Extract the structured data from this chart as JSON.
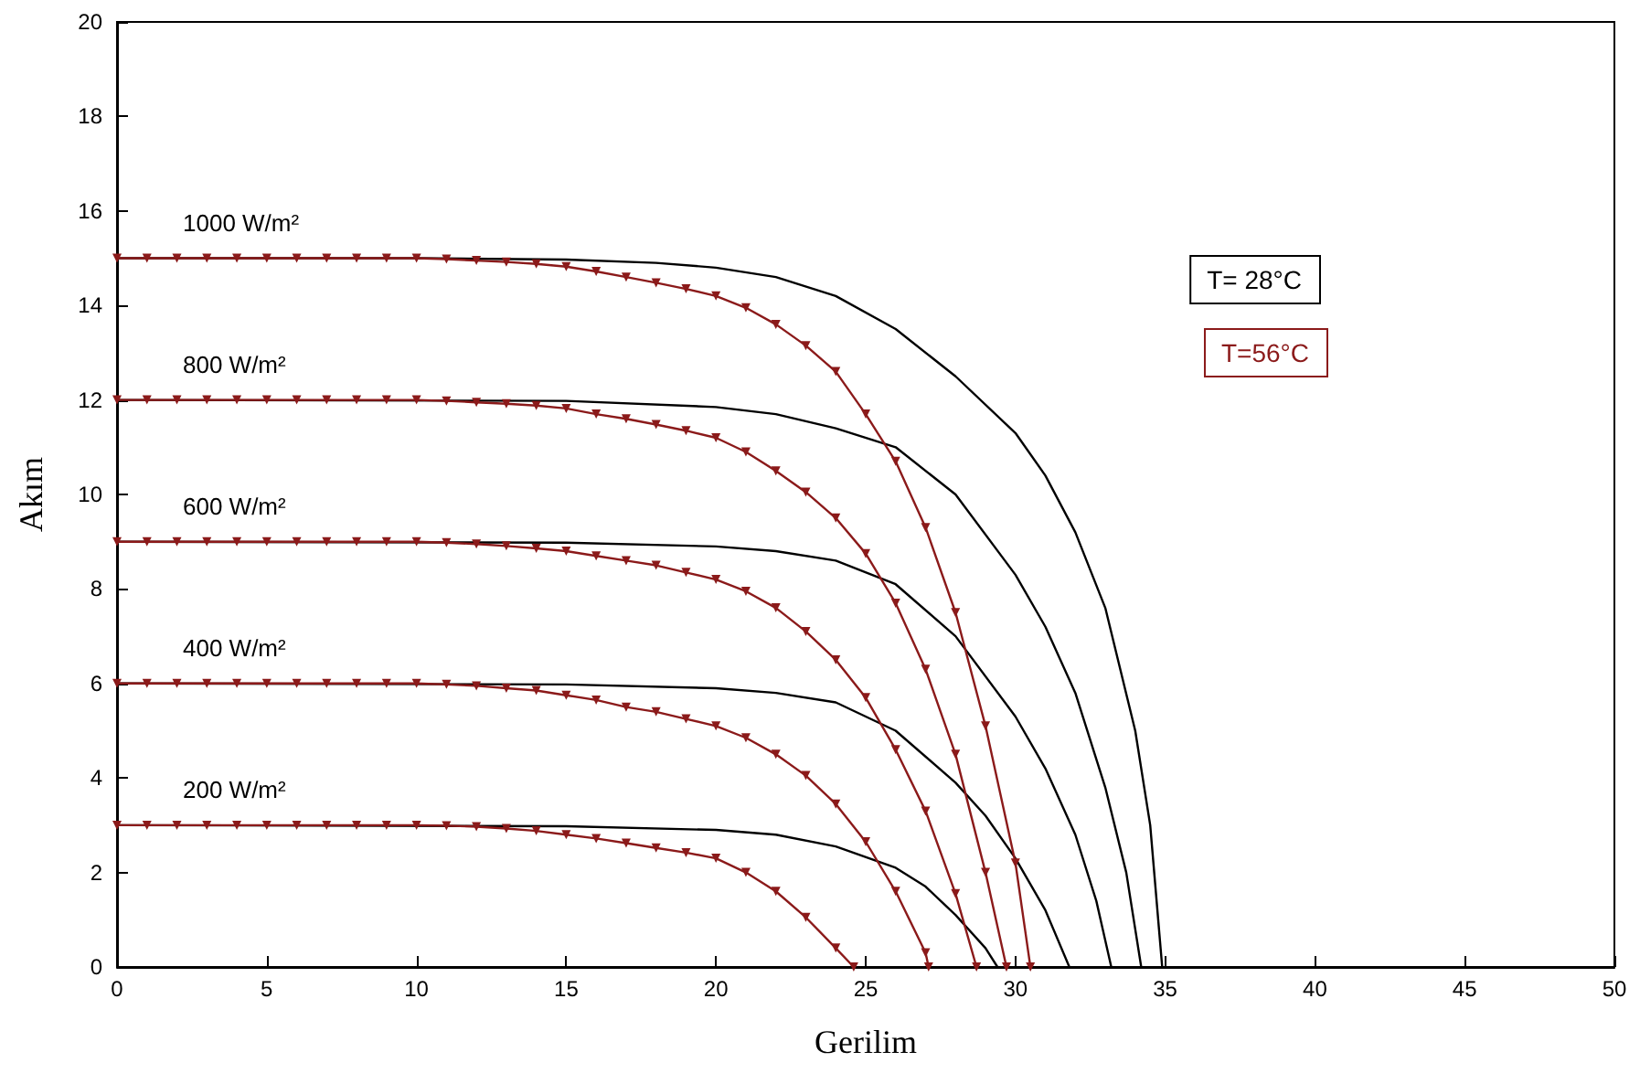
{
  "chart_data": {
    "type": "line",
    "xlabel": "Gerilim",
    "ylabel": "Akım",
    "xlim": [
      0,
      50
    ],
    "xticks": [
      0,
      5,
      10,
      15,
      20,
      25,
      30,
      35,
      40,
      45,
      50
    ],
    "ylim": [
      0,
      20
    ],
    "yticks": [
      0,
      2,
      4,
      6,
      8,
      10,
      12,
      14,
      16,
      18,
      20
    ],
    "grid": false,
    "legend": "top right",
    "line_style": "solid",
    "series": [
      {
        "name": "T= 28°C",
        "color": "#000000",
        "marker": "none",
        "x": [
          0,
          10,
          15,
          18,
          20,
          22,
          24,
          26,
          28,
          30,
          31,
          32,
          33,
          34,
          34.5,
          34.9
        ],
        "values": [
          15,
          15,
          14.97,
          14.9,
          14.8,
          14.6,
          14.2,
          13.5,
          12.5,
          11.3,
          10.4,
          9.2,
          7.6,
          5,
          3,
          0
        ]
      },
      {
        "color": "#000000",
        "marker": "none",
        "x": [
          0,
          15,
          20,
          22,
          24,
          26,
          28,
          30,
          31,
          32,
          33,
          33.7,
          34.2
        ],
        "values": [
          12,
          11.98,
          11.85,
          11.7,
          11.4,
          11,
          10,
          8.3,
          7.2,
          5.8,
          3.8,
          2,
          0
        ]
      },
      {
        "color": "#000000",
        "marker": "none",
        "x": [
          0,
          15,
          20,
          22,
          24,
          26,
          28,
          30,
          31,
          32,
          32.7,
          33.2
        ],
        "values": [
          9,
          8.98,
          8.9,
          8.8,
          8.6,
          8.1,
          7,
          5.3,
          4.2,
          2.8,
          1.4,
          0
        ]
      },
      {
        "color": "#000000",
        "marker": "none",
        "x": [
          0,
          15,
          20,
          22,
          24,
          26,
          28,
          29,
          30,
          31,
          31.8
        ],
        "values": [
          6,
          5.98,
          5.9,
          5.8,
          5.6,
          5,
          3.9,
          3.2,
          2.3,
          1.2,
          0
        ]
      },
      {
        "color": "#000000",
        "marker": "none",
        "x": [
          0,
          15,
          20,
          22,
          24,
          26,
          27,
          28,
          29,
          29.4
        ],
        "values": [
          3,
          2.98,
          2.9,
          2.8,
          2.55,
          2.1,
          1.7,
          1.1,
          0.4,
          0
        ]
      },
      {
        "name": "T=56°C",
        "color": "#8b1a1a",
        "marker": "triangle",
        "x": [
          0,
          1,
          2,
          3,
          4,
          5,
          6,
          7,
          8,
          9,
          10,
          11,
          12,
          13,
          14,
          15,
          16,
          17,
          18,
          19,
          20,
          21,
          22,
          23,
          24,
          25,
          26,
          27,
          28,
          29,
          30,
          30.5
        ],
        "values": [
          15,
          15,
          15,
          15,
          15,
          15,
          15,
          15,
          15,
          15,
          15,
          14.98,
          14.95,
          14.92,
          14.88,
          14.82,
          14.72,
          14.6,
          14.48,
          14.35,
          14.2,
          13.95,
          13.6,
          13.15,
          12.6,
          11.7,
          10.7,
          9.3,
          7.5,
          5.1,
          2.2,
          0
        ]
      },
      {
        "color": "#8b1a1a",
        "marker": "triangle",
        "x": [
          0,
          1,
          2,
          3,
          4,
          5,
          6,
          7,
          8,
          9,
          10,
          11,
          12,
          13,
          14,
          15,
          16,
          17,
          18,
          19,
          20,
          21,
          22,
          23,
          24,
          25,
          26,
          27,
          28,
          29,
          29.7
        ],
        "values": [
          12,
          12,
          12,
          12,
          12,
          12,
          12,
          12,
          12,
          12,
          12,
          11.98,
          11.95,
          11.92,
          11.88,
          11.82,
          11.7,
          11.6,
          11.48,
          11.35,
          11.2,
          10.9,
          10.5,
          10.05,
          9.5,
          8.75,
          7.7,
          6.3,
          4.5,
          2,
          0
        ]
      },
      {
        "color": "#8b1a1a",
        "marker": "triangle",
        "x": [
          0,
          1,
          2,
          3,
          4,
          5,
          6,
          7,
          8,
          9,
          10,
          11,
          12,
          13,
          14,
          15,
          16,
          17,
          18,
          19,
          20,
          21,
          22,
          23,
          24,
          25,
          26,
          27,
          28,
          28.7
        ],
        "values": [
          9,
          9,
          9,
          9,
          9,
          9,
          9,
          9,
          9,
          9,
          9,
          8.98,
          8.95,
          8.91,
          8.86,
          8.8,
          8.7,
          8.6,
          8.5,
          8.35,
          8.2,
          7.95,
          7.6,
          7.1,
          6.5,
          5.7,
          4.6,
          3.3,
          1.55,
          0
        ]
      },
      {
        "color": "#8b1a1a",
        "marker": "triangle",
        "x": [
          0,
          1,
          2,
          3,
          4,
          5,
          6,
          7,
          8,
          9,
          10,
          11,
          12,
          13,
          14,
          15,
          16,
          17,
          18,
          19,
          20,
          21,
          22,
          23,
          24,
          25,
          26,
          27,
          27.1
        ],
        "values": [
          6,
          6,
          6,
          6,
          6,
          6,
          6,
          6,
          6,
          6,
          6,
          5.98,
          5.95,
          5.9,
          5.85,
          5.75,
          5.65,
          5.5,
          5.4,
          5.25,
          5.1,
          4.85,
          4.5,
          4.05,
          3.45,
          2.65,
          1.6,
          0.3,
          0
        ]
      },
      {
        "color": "#8b1a1a",
        "marker": "triangle",
        "x": [
          0,
          1,
          2,
          3,
          4,
          5,
          6,
          7,
          8,
          9,
          10,
          11,
          12,
          13,
          14,
          15,
          16,
          17,
          18,
          19,
          20,
          21,
          22,
          23,
          24,
          24.6
        ],
        "values": [
          3,
          3,
          3,
          3,
          3,
          3,
          3,
          3,
          3,
          3,
          3,
          2.99,
          2.97,
          2.93,
          2.88,
          2.8,
          2.72,
          2.62,
          2.52,
          2.42,
          2.3,
          2,
          1.6,
          1.05,
          0.4,
          0
        ]
      }
    ],
    "annotations": [
      "1000 W/m²",
      "800 W/m²",
      "600 W/m²",
      "400 W/m²",
      "200 W/m²"
    ]
  }
}
